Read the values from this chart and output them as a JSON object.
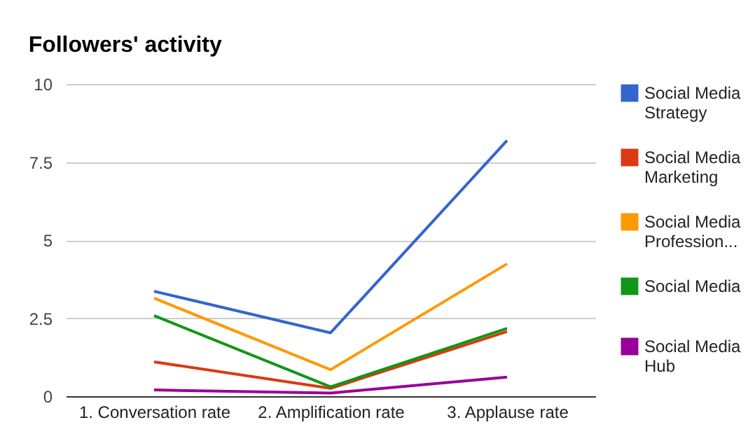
{
  "chart_data": {
    "type": "line",
    "title": "Followers' activity",
    "categories": [
      "1. Conversation rate",
      "2. Amplification rate",
      "3. Applause rate"
    ],
    "series": [
      {
        "name": "Social Media Strategy",
        "color": "#3366cc",
        "values": [
          3.36,
          2.03,
          8.19
        ]
      },
      {
        "name": "Social Media Marketing",
        "color": "#dc3912",
        "values": [
          1.1,
          0.25,
          2.07
        ]
      },
      {
        "name": "Social Media Profession...",
        "color": "#ff9900",
        "values": [
          3.14,
          0.85,
          4.24
        ]
      },
      {
        "name": "Social Media",
        "color": "#109618",
        "values": [
          2.58,
          0.3,
          2.17
        ]
      },
      {
        "name": "Social Media Hub",
        "color": "#990099",
        "values": [
          0.2,
          0.1,
          0.61
        ]
      }
    ],
    "ylim": [
      0,
      10
    ],
    "yticks": [
      0,
      2.5,
      5,
      7.5,
      10
    ],
    "grid": "y",
    "legend": "right",
    "marker": "none",
    "line_style": "solid"
  }
}
